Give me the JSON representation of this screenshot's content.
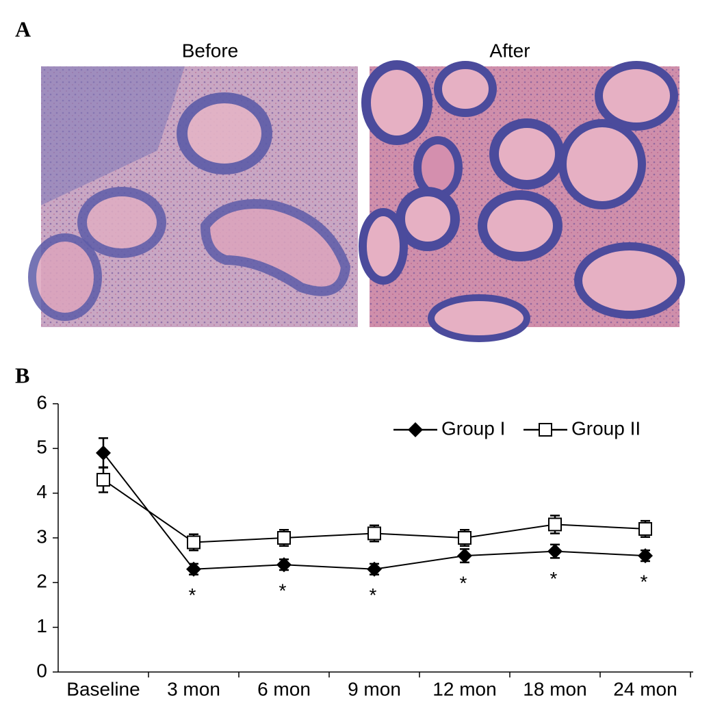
{
  "panels": {
    "a": {
      "label": "A",
      "images": [
        {
          "title": "Before"
        },
        {
          "title": "After"
        }
      ]
    },
    "b": {
      "label": "B"
    }
  },
  "chart_data": {
    "type": "line",
    "categories": [
      "Baseline",
      "3 mon",
      "6 mon",
      "9 mon",
      "12 mon",
      "18 mon",
      "24 mon"
    ],
    "series": [
      {
        "name": "Group I",
        "color": "#000000",
        "marker": "diamond",
        "values": [
          4.9,
          2.3,
          2.4,
          2.3,
          2.6,
          2.7,
          2.6
        ],
        "errors": [
          0.33,
          0.12,
          0.12,
          0.12,
          0.15,
          0.15,
          0.12
        ]
      },
      {
        "name": "Group II",
        "color": "#000000",
        "marker": "square",
        "values": [
          4.3,
          2.9,
          3.0,
          3.1,
          3.0,
          3.3,
          3.2
        ],
        "errors": [
          0.28,
          0.18,
          0.18,
          0.18,
          0.18,
          0.2,
          0.18
        ]
      }
    ],
    "significance": [
      null,
      "*",
      "*",
      "*",
      "*",
      "*",
      "*"
    ],
    "ylim": [
      0,
      6
    ],
    "yticks": [
      0,
      1,
      2,
      3,
      4,
      5,
      6
    ],
    "grid": false,
    "legend": "top-right"
  }
}
